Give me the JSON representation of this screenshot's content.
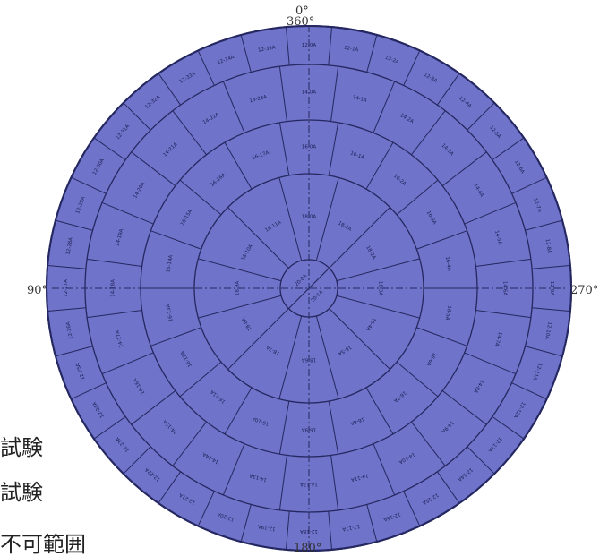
{
  "angle_labels": {
    "top_zero": "0°",
    "top_360": "360°",
    "left_90": "90°",
    "right_270": "270°",
    "bottom_180": "180°"
  },
  "legend": {
    "line1": "試験",
    "line2": "試験",
    "line3": "不可範囲"
  },
  "colors": {
    "disc_fill": "#6f73c9",
    "disc_stroke": "#2a2d70",
    "grid_line": "#252860",
    "cell_text": "#1c1f55"
  },
  "rings": {
    "outer_cells": [
      "12-0A",
      "12-1A",
      "12-2A",
      "12-3A",
      "12-4A",
      "12-5A",
      "12-6A",
      "12-7A",
      "12-8A",
      "12-9A",
      "12-10A",
      "12-11A",
      "12-12A",
      "12-13A",
      "12-14A",
      "12-15A",
      "12-16A",
      "12-17A",
      "12-18A",
      "12-19A",
      "12-20A",
      "12-21A",
      "12-22A",
      "12-23A",
      "12-24A",
      "12-25A",
      "12-26A",
      "12-27A",
      "12-28A",
      "12-29A",
      "12-30A",
      "12-31A",
      "12-32A",
      "12-33A",
      "12-34A",
      "12-35A"
    ],
    "middle_cells": [
      "14-0A",
      "14-1A",
      "14-2A",
      "14-3A",
      "14-4A",
      "14-5A",
      "14-6A",
      "14-7A",
      "14-8A",
      "14-9A",
      "14-10A",
      "14-11A",
      "14-12A",
      "14-13A",
      "14-14A",
      "14-15A",
      "14-16A",
      "14-17A",
      "14-18A",
      "14-19A",
      "14-20A",
      "14-21A",
      "14-22A",
      "14-23A"
    ],
    "inner_cells": [
      "16-0A",
      "16-1A",
      "16-2A",
      "16-3A",
      "16-4A",
      "16-5A",
      "16-6A",
      "16-7A",
      "16-8A",
      "16-9A",
      "16-10A",
      "16-11A",
      "16-12A",
      "16-13A",
      "16-14A",
      "16-15A",
      "16-16A",
      "16-17A"
    ],
    "core_cells": [
      "18-0A",
      "18-1A",
      "18-2A",
      "18-3A",
      "18-4A",
      "18-5A",
      "18-6A",
      "18-7A",
      "18-8A",
      "18-9A",
      "18-10A",
      "18-11A"
    ],
    "center_cells": [
      "20-0A",
      "20-1A"
    ]
  }
}
